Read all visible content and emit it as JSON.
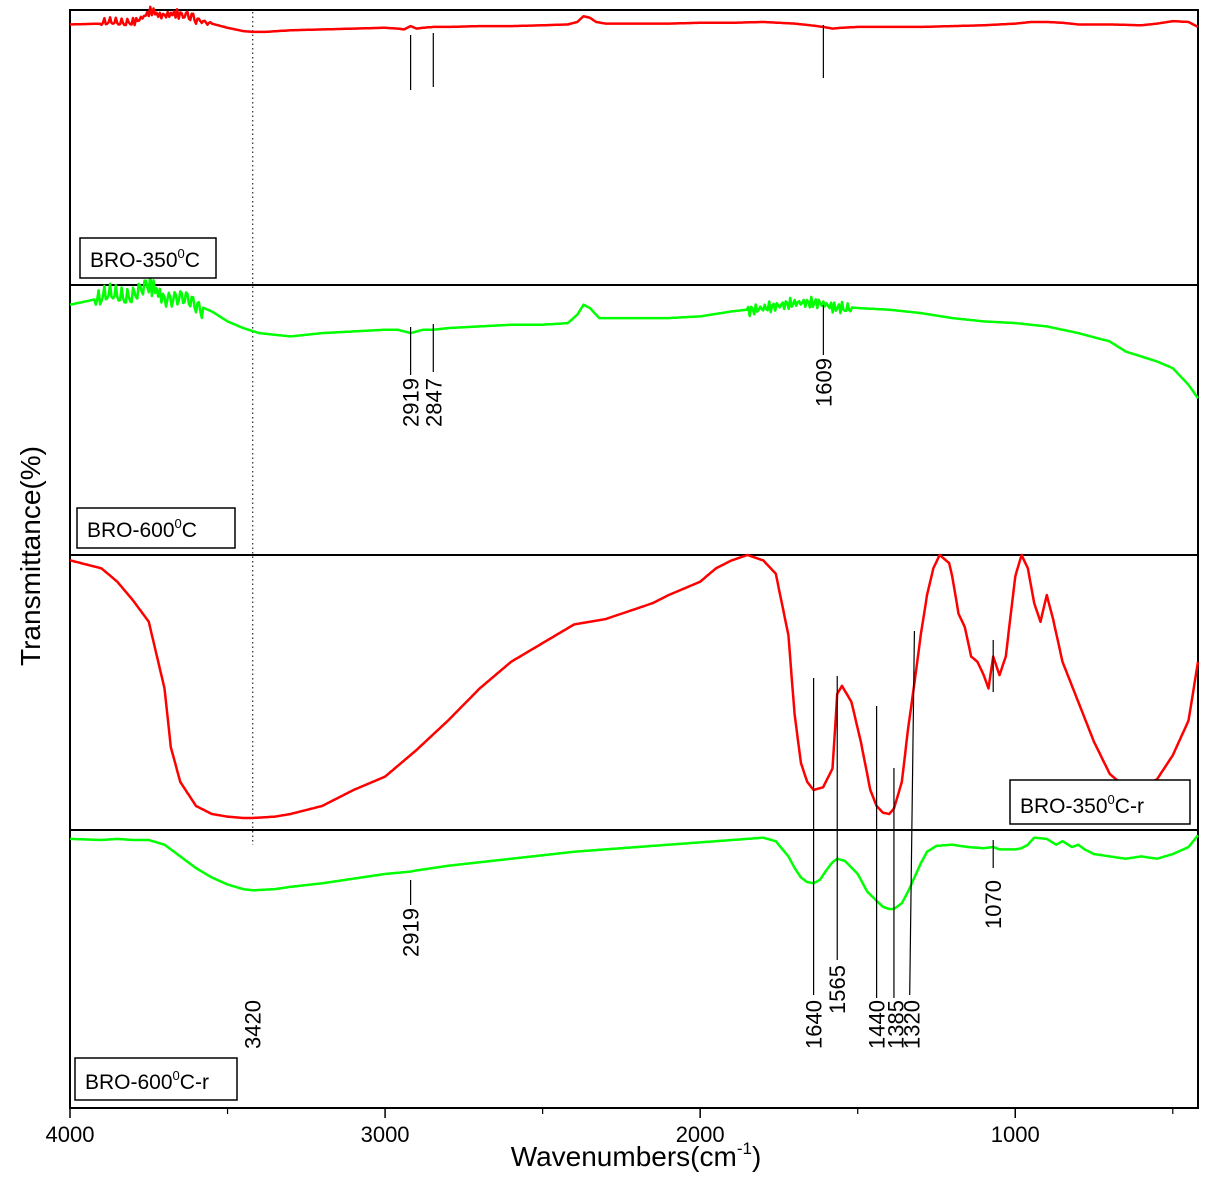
{
  "chart_data": {
    "type": "line",
    "xlabel": "Wavenumbers(cm",
    "xlabel_sup": "-1",
    "xlabel_end": ")",
    "ylabel": "Transmittance(%)",
    "xlim": [
      4000,
      420
    ],
    "x_reversed": true,
    "x_ticks": [
      4000,
      3000,
      2000,
      1000
    ],
    "x_tick_labels": [
      "4000",
      "3000",
      "2000",
      "1000"
    ],
    "reference_line": {
      "x": 3420,
      "style": "dotted"
    },
    "series": [
      {
        "name": "BRO-350",
        "label_sup": "0",
        "label_end": "C",
        "color": "#ff0000",
        "legend_position": "bottom-left",
        "noise": [
          [
            3900,
            3600,
            4
          ],
          [
            3630,
            3550,
            2
          ]
        ],
        "x": [
          4000,
          3900,
          3850,
          3800,
          3760,
          3740,
          3720,
          3700,
          3680,
          3650,
          3600,
          3550,
          3500,
          3450,
          3420,
          3380,
          3300,
          3200,
          3100,
          3000,
          2960,
          2940,
          2919,
          2900,
          2880,
          2847,
          2800,
          2700,
          2600,
          2500,
          2420,
          2390,
          2370,
          2350,
          2330,
          2300,
          2200,
          2100,
          2000,
          1900,
          1800,
          1700,
          1650,
          1609,
          1580,
          1550,
          1500,
          1400,
          1300,
          1200,
          1100,
          1000,
          950,
          900,
          850,
          800,
          700,
          600,
          550,
          500,
          450,
          420
        ],
        "y": [
          0.85,
          0.86,
          0.87,
          0.9,
          0.95,
          1.0,
          0.97,
          0.98,
          0.97,
          0.95,
          0.92,
          0.86,
          0.81,
          0.77,
          0.76,
          0.76,
          0.78,
          0.79,
          0.8,
          0.81,
          0.8,
          0.79,
          0.83,
          0.8,
          0.81,
          0.82,
          0.82,
          0.83,
          0.83,
          0.84,
          0.85,
          0.88,
          0.95,
          0.93,
          0.88,
          0.86,
          0.86,
          0.86,
          0.87,
          0.87,
          0.88,
          0.86,
          0.84,
          0.82,
          0.8,
          0.81,
          0.82,
          0.82,
          0.82,
          0.83,
          0.84,
          0.86,
          0.88,
          0.88,
          0.87,
          0.85,
          0.85,
          0.84,
          0.86,
          0.89,
          0.88,
          0.82
        ]
      },
      {
        "name": "BRO-600",
        "label_sup": "0",
        "label_end": "C",
        "color": "#00ff00",
        "legend_position": "bottom-left",
        "noise": [
          [
            3920,
            3580,
            9
          ],
          [
            1850,
            1520,
            5
          ]
        ],
        "x": [
          4000,
          3950,
          3900,
          3850,
          3800,
          3750,
          3720,
          3700,
          3650,
          3600,
          3550,
          3500,
          3450,
          3400,
          3350,
          3300,
          3200,
          3100,
          3000,
          2960,
          2919,
          2880,
          2847,
          2800,
          2700,
          2600,
          2500,
          2420,
          2390,
          2370,
          2350,
          2320,
          2300,
          2200,
          2100,
          2000,
          1900,
          1800,
          1700,
          1609,
          1550,
          1500,
          1400,
          1300,
          1200,
          1100,
          1000,
          900,
          800,
          700,
          650,
          600,
          550,
          500,
          450,
          420
        ],
        "y": [
          0.9,
          0.92,
          0.94,
          0.95,
          0.97,
          1.0,
          0.98,
          0.96,
          0.93,
          0.9,
          0.86,
          0.8,
          0.76,
          0.73,
          0.72,
          0.71,
          0.73,
          0.74,
          0.75,
          0.75,
          0.73,
          0.75,
          0.75,
          0.76,
          0.77,
          0.78,
          0.78,
          0.79,
          0.84,
          0.9,
          0.88,
          0.82,
          0.82,
          0.82,
          0.82,
          0.83,
          0.86,
          0.88,
          0.9,
          0.9,
          0.89,
          0.88,
          0.87,
          0.85,
          0.82,
          0.8,
          0.79,
          0.77,
          0.73,
          0.68,
          0.62,
          0.59,
          0.56,
          0.52,
          0.42,
          0.34
        ]
      },
      {
        "name": "BRO-350",
        "label_sup": "0",
        "label_end": "C-r",
        "color": "#ff0000",
        "legend_position": "bottom-right",
        "noise": [],
        "x": [
          4000,
          3900,
          3850,
          3800,
          3750,
          3700,
          3680,
          3650,
          3600,
          3550,
          3500,
          3450,
          3420,
          3350,
          3300,
          3200,
          3100,
          3000,
          2900,
          2800,
          2700,
          2600,
          2500,
          2400,
          2300,
          2200,
          2150,
          2100,
          2000,
          1950,
          1900,
          1850,
          1800,
          1760,
          1720,
          1700,
          1680,
          1660,
          1640,
          1610,
          1580,
          1565,
          1550,
          1520,
          1490,
          1460,
          1440,
          1420,
          1400,
          1385,
          1360,
          1340,
          1320,
          1300,
          1280,
          1260,
          1240,
          1220,
          1210,
          1200,
          1180,
          1160,
          1140,
          1120,
          1100,
          1085,
          1070,
          1050,
          1030,
          1020,
          1010,
          1000,
          980,
          960,
          940,
          920,
          900,
          880,
          850,
          800,
          750,
          700,
          650,
          620,
          600,
          550,
          500,
          450,
          420
        ],
        "y": [
          0.98,
          0.95,
          0.9,
          0.83,
          0.75,
          0.5,
          0.28,
          0.15,
          0.06,
          0.03,
          0.02,
          0.015,
          0.015,
          0.02,
          0.03,
          0.06,
          0.12,
          0.17,
          0.27,
          0.38,
          0.5,
          0.6,
          0.67,
          0.74,
          0.76,
          0.8,
          0.82,
          0.85,
          0.9,
          0.95,
          0.98,
          1.0,
          0.98,
          0.93,
          0.7,
          0.4,
          0.22,
          0.15,
          0.12,
          0.13,
          0.2,
          0.48,
          0.51,
          0.45,
          0.3,
          0.12,
          0.06,
          0.035,
          0.03,
          0.05,
          0.15,
          0.35,
          0.52,
          0.7,
          0.85,
          0.95,
          1.0,
          0.98,
          0.97,
          0.92,
          0.78,
          0.73,
          0.62,
          0.6,
          0.55,
          0.5,
          0.62,
          0.55,
          0.62,
          0.72,
          0.82,
          0.92,
          1.0,
          0.95,
          0.82,
          0.75,
          0.85,
          0.76,
          0.6,
          0.45,
          0.3,
          0.18,
          0.13,
          0.12,
          0.13,
          0.16,
          0.25,
          0.38,
          0.6
        ]
      },
      {
        "name": "BRO-600",
        "label_sup": "0",
        "label_end": "C-r",
        "color": "#00ff00",
        "legend_position": "bottom-left",
        "noise": [],
        "x": [
          4000,
          3900,
          3850,
          3800,
          3750,
          3700,
          3650,
          3600,
          3550,
          3500,
          3450,
          3420,
          3350,
          3300,
          3200,
          3100,
          3000,
          2919,
          2900,
          2800,
          2700,
          2600,
          2500,
          2400,
          2300,
          2200,
          2100,
          2000,
          1900,
          1800,
          1760,
          1720,
          1700,
          1680,
          1660,
          1640,
          1620,
          1600,
          1580,
          1565,
          1540,
          1500,
          1470,
          1440,
          1420,
          1400,
          1385,
          1360,
          1340,
          1320,
          1300,
          1280,
          1250,
          1200,
          1150,
          1100,
          1070,
          1050,
          1000,
          980,
          960,
          940,
          900,
          870,
          850,
          820,
          800,
          780,
          750,
          700,
          650,
          600,
          550,
          500,
          450,
          420
        ],
        "y": [
          0.95,
          0.94,
          0.95,
          0.94,
          0.94,
          0.9,
          0.8,
          0.7,
          0.62,
          0.56,
          0.52,
          0.51,
          0.52,
          0.54,
          0.57,
          0.61,
          0.65,
          0.67,
          0.68,
          0.72,
          0.75,
          0.78,
          0.81,
          0.84,
          0.86,
          0.88,
          0.9,
          0.92,
          0.94,
          0.96,
          0.93,
          0.8,
          0.7,
          0.62,
          0.58,
          0.57,
          0.6,
          0.68,
          0.75,
          0.78,
          0.76,
          0.65,
          0.5,
          0.42,
          0.37,
          0.35,
          0.35,
          0.4,
          0.5,
          0.62,
          0.74,
          0.84,
          0.89,
          0.9,
          0.88,
          0.87,
          0.88,
          0.86,
          0.86,
          0.87,
          0.9,
          0.96,
          0.95,
          0.9,
          0.93,
          0.88,
          0.9,
          0.86,
          0.82,
          0.8,
          0.78,
          0.8,
          0.78,
          0.82,
          0.88,
          0.98
        ]
      }
    ],
    "annotations": [
      {
        "text": "2919",
        "x": 2919,
        "panel": 1
      },
      {
        "text": "2847",
        "x": 2847,
        "panel": 1
      },
      {
        "text": "1609",
        "x": 1609,
        "panel": 1
      },
      {
        "text": "3420",
        "x": 3420,
        "panel": 3
      },
      {
        "text": "2919",
        "x": 2919,
        "panel": 3
      },
      {
        "text": "1640",
        "x": 1640,
        "panel": 3
      },
      {
        "text": "1565",
        "x": 1565,
        "panel": 3
      },
      {
        "text": "1440",
        "x": 1440,
        "panel": 3
      },
      {
        "text": "1385",
        "x": 1385,
        "panel": 3
      },
      {
        "text": "1320",
        "x": 1320,
        "panel": 3
      },
      {
        "text": "1070",
        "x": 1070,
        "panel": 3
      }
    ]
  }
}
